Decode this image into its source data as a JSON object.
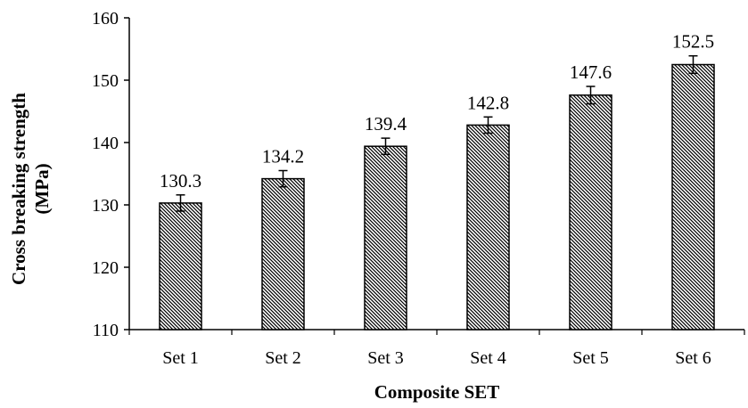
{
  "chart_data": {
    "type": "bar",
    "categories": [
      "Set 1",
      "Set 2",
      "Set 3",
      "Set 4",
      "Set 5",
      "Set 6"
    ],
    "values": [
      130.3,
      134.2,
      139.4,
      142.8,
      147.6,
      152.5
    ],
    "error": [
      1.3,
      1.3,
      1.3,
      1.3,
      1.4,
      1.4
    ],
    "data_labels": [
      "130.3",
      "134.2",
      "139.4",
      "142.8",
      "147.6",
      "152.5"
    ],
    "xlabel": "Composite SET",
    "ylabel": [
      "Cross breaking strength",
      "(MPa)"
    ],
    "ylim": [
      110,
      160
    ],
    "yticks": [
      110,
      120,
      130,
      140,
      150,
      160
    ],
    "grid": false,
    "legend": "none",
    "bar_fill": "hatched",
    "colors": {
      "bar_stroke": "#000000",
      "hatch": "#000000",
      "background": "#ffffff"
    }
  }
}
